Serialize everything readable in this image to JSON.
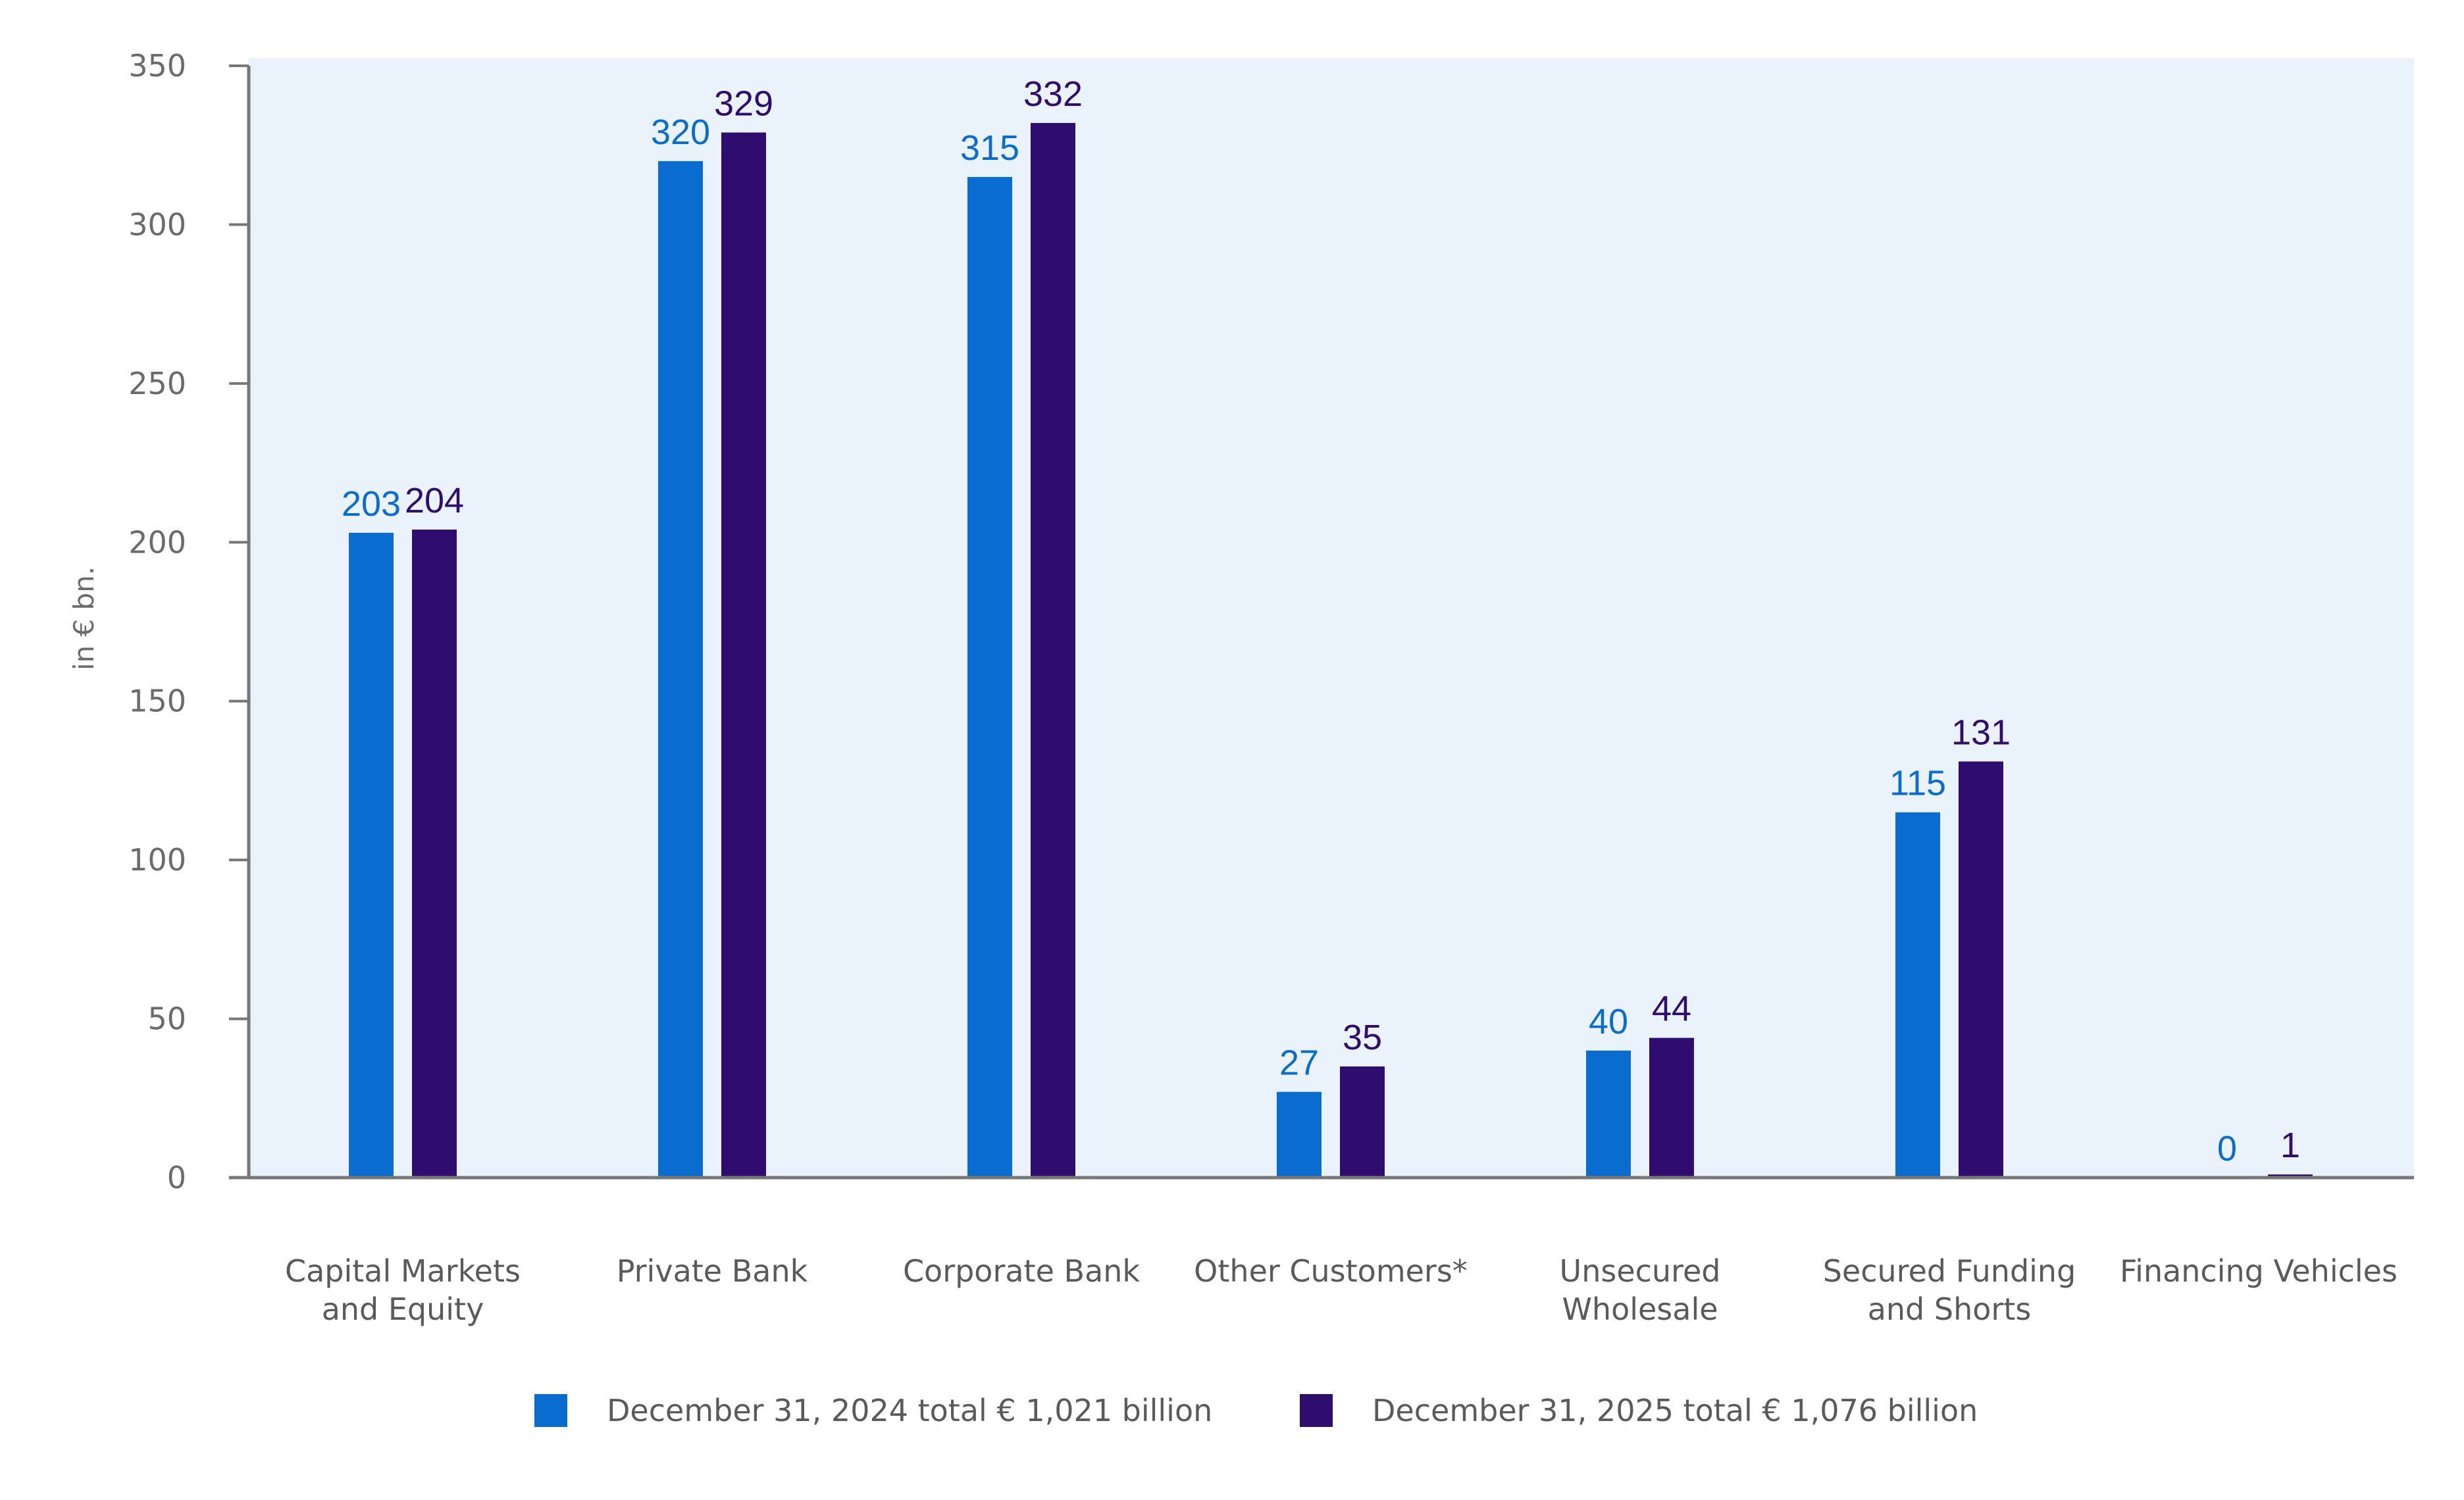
{
  "chart_data": {
    "type": "bar",
    "title": "",
    "xlabel": "",
    "ylabel": "in € bn.",
    "ylim": [
      0,
      350
    ],
    "yticks": [
      0,
      50,
      100,
      150,
      200,
      250,
      300,
      350
    ],
    "grid": false,
    "categories": [
      [
        "Capital Markets",
        "and Equity"
      ],
      [
        "Private Bank"
      ],
      [
        "Corporate Bank"
      ],
      [
        "Other Customers*"
      ],
      [
        "Unsecured",
        "Wholesale"
      ],
      [
        "Secured Funding",
        "and Shorts"
      ],
      [
        "Financing Vehicles"
      ]
    ],
    "series": [
      {
        "name": "December 31, 2024   total € 1,021 billion",
        "color": "#0a6ccf",
        "values": [
          203,
          320,
          315,
          27,
          40,
          115,
          0
        ]
      },
      {
        "name": "December 31, 2025   total € 1,076 billion",
        "color": "#2e0d6e",
        "values": [
          204,
          329,
          332,
          35,
          44,
          131,
          1
        ]
      }
    ],
    "legend_position": "bottom",
    "plot_background": "#eaf3fb"
  }
}
